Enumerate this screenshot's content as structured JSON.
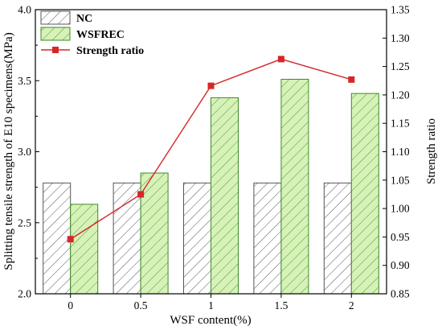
{
  "chart_data": {
    "type": "bar",
    "categories": [
      "0",
      "0.5",
      "1",
      "1.5",
      "2"
    ],
    "xlabel": "WSF content(%)",
    "ylabel": "Splitting tensile strength of E10 specimens(MPa)",
    "y2label": "Strength ratio",
    "ylim": [
      2.0,
      4.0
    ],
    "y2lim": [
      0.85,
      1.35
    ],
    "yticks": [
      "2.0",
      "2.5",
      "3.0",
      "3.5",
      "4.0"
    ],
    "y2ticks": [
      "0.85",
      "0.90",
      "0.95",
      "1.00",
      "1.05",
      "1.10",
      "1.15",
      "1.20",
      "1.25",
      "1.30",
      "1.35"
    ],
    "legend_position": "top-left",
    "series": [
      {
        "name": "NC",
        "kind": "bar",
        "axis": "left",
        "values": [
          2.78,
          2.78,
          2.78,
          2.78,
          2.78
        ],
        "fill": "#ffffff",
        "hatch": "#555555",
        "stroke": "#555555"
      },
      {
        "name": "WSFREC",
        "kind": "bar",
        "axis": "left",
        "values": [
          2.63,
          2.85,
          3.38,
          3.51,
          3.41
        ],
        "fill": "#d6f2b8",
        "hatch": "#4a9a2e",
        "stroke": "#3f8a28"
      },
      {
        "name": "Strength ratio",
        "kind": "line",
        "axis": "right",
        "values": [
          0.946,
          1.025,
          1.216,
          1.263,
          1.227
        ],
        "color": "#d62728"
      }
    ]
  }
}
